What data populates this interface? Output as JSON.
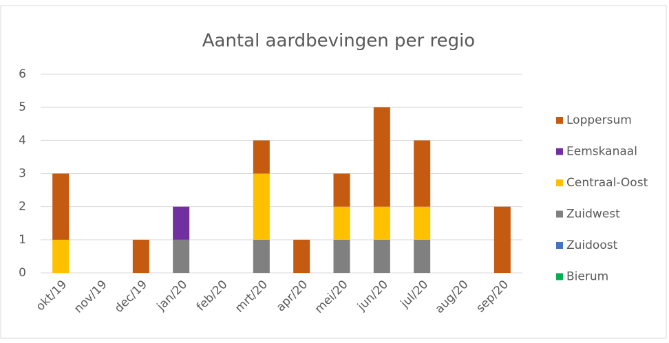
{
  "chart_data": {
    "type": "bar",
    "stacked": true,
    "title": "Aantal aardbevingen per regio",
    "categories": [
      "okt/19",
      "nov/19",
      "dec/19",
      "jan/20",
      "feb/20",
      "mrt/20",
      "apr/20",
      "mei/20",
      "jun/20",
      "jul/20",
      "aug/20",
      "sep/20"
    ],
    "series": [
      {
        "name": "Bierum",
        "color": "#00b050",
        "values": [
          0,
          0,
          0,
          0,
          0,
          0,
          0,
          0,
          0,
          0,
          0,
          0
        ]
      },
      {
        "name": "Zuidoost",
        "color": "#4472c4",
        "values": [
          0,
          0,
          0,
          0,
          0,
          0,
          0,
          0,
          0,
          0,
          0,
          0
        ]
      },
      {
        "name": "Zuidwest",
        "color": "#808080",
        "values": [
          0,
          0,
          0,
          1,
          0,
          1,
          0,
          1,
          1,
          1,
          0,
          0
        ]
      },
      {
        "name": "Centraal-Oost",
        "color": "#ffc000",
        "values": [
          1,
          0,
          0,
          0,
          0,
          2,
          0,
          1,
          1,
          1,
          0,
          0
        ]
      },
      {
        "name": "Eemskanaal",
        "color": "#7030a0",
        "values": [
          0,
          0,
          0,
          1,
          0,
          0,
          0,
          0,
          0,
          0,
          0,
          0
        ]
      },
      {
        "name": "Loppersum",
        "color": "#c55a11",
        "values": [
          2,
          0,
          1,
          0,
          0,
          1,
          1,
          1,
          3,
          2,
          0,
          2
        ]
      }
    ],
    "ylim": [
      0,
      6
    ],
    "yticks": [
      0,
      1,
      2,
      3,
      4,
      5,
      6
    ],
    "grid": true,
    "legend": "right"
  }
}
